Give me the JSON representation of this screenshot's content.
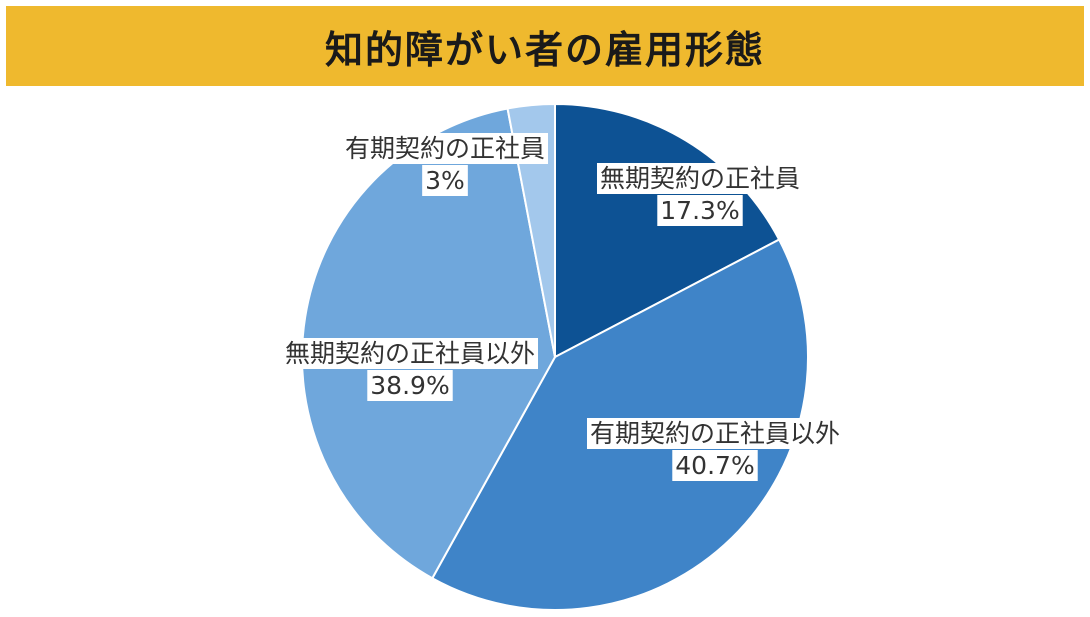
{
  "title": "知的障がい者の雇用形態",
  "colors": {
    "title_bar": "#efb92e",
    "slice_1": "#0d5294",
    "slice_2": "#3f84c8",
    "slice_3": "#6fa7dc",
    "slice_4": "#a3c8ec"
  },
  "chart_data": {
    "type": "pie",
    "title": "知的障がい者の雇用形態",
    "start_angle_deg": 0,
    "direction": "clockwise",
    "slices": [
      {
        "label": "無期契約の正社員",
        "value": 17.3,
        "value_label": "17.3%",
        "color": "#0d5294"
      },
      {
        "label": "有期契約の正社員以外",
        "value": 40.7,
        "value_label": "40.7%",
        "color": "#3f84c8"
      },
      {
        "label": "無期契約の正社員以外",
        "value": 38.9,
        "value_label": "38.9%",
        "color": "#6fa7dc"
      },
      {
        "label": "有期契約の正社員",
        "value": 3,
        "value_label": "3%",
        "color": "#a3c8ec"
      }
    ]
  }
}
